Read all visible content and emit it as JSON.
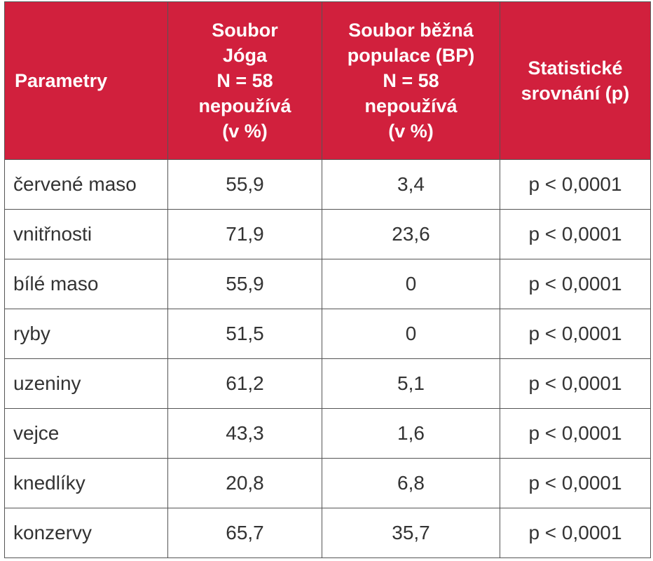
{
  "table": {
    "header": {
      "parametry": "Parametry",
      "joga": [
        "Soubor",
        "Jóga",
        "N = 58",
        "nepoužívá",
        "(v %)"
      ],
      "bp": [
        "Soubor běžná",
        "populace (BP)",
        "N = 58",
        "nepoužívá",
        "(v %)"
      ],
      "stat": [
        "Statistické",
        "srovnání (p)"
      ]
    },
    "rows": [
      [
        "červené maso",
        "55,9",
        "3,4",
        "p < 0,0001"
      ],
      [
        "vnitřnosti",
        "71,9",
        "23,6",
        "p < 0,0001"
      ],
      [
        "bílé maso",
        "55,9",
        "0",
        "p < 0,0001"
      ],
      [
        "ryby",
        "51,5",
        "0",
        "p < 0,0001"
      ],
      [
        "uzeniny",
        "61,2",
        "5,1",
        "p < 0,0001"
      ],
      [
        "vejce",
        "43,3",
        "1,6",
        "p < 0,0001"
      ],
      [
        "knedlíky",
        "20,8",
        "6,8",
        "p < 0,0001"
      ],
      [
        "konzervy",
        "65,7",
        "35,7",
        "p < 0,0001"
      ]
    ]
  },
  "colors": {
    "header_bg": "#d1203d",
    "header_text": "#ffffff",
    "border": "#555555",
    "body_text": "#333333"
  }
}
